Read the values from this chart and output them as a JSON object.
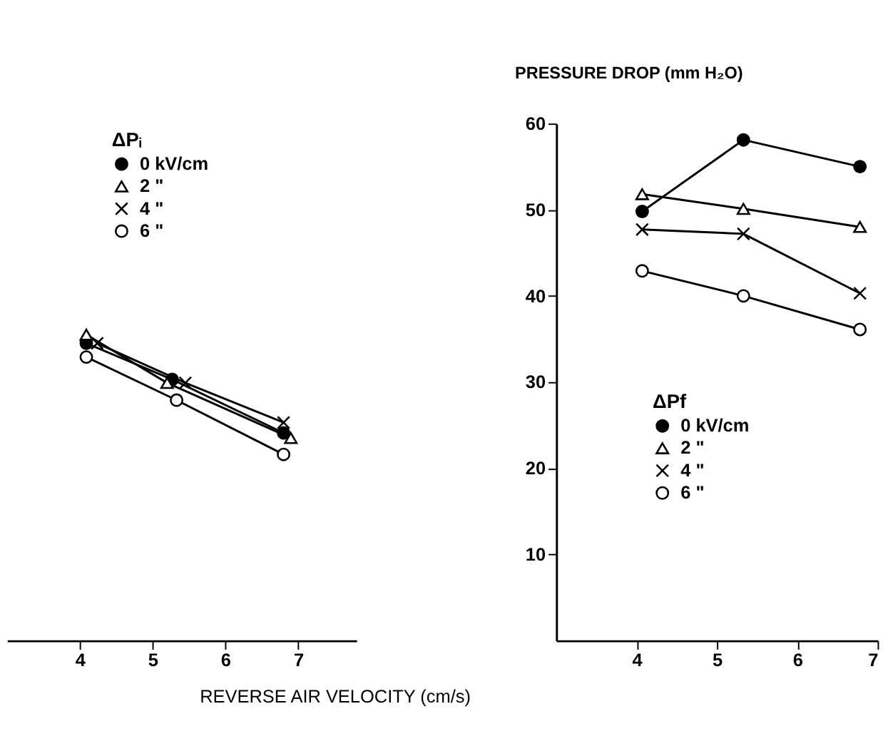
{
  "chart_data": [
    {
      "type": "line",
      "xlabel": "REVERSE AIR VELOCITY (cm/s)",
      "legend_title": "ΔPᵢ",
      "xlim": [
        3,
        7.8
      ],
      "xticks": [
        4,
        5,
        6,
        7
      ],
      "ylim": [
        0,
        60
      ],
      "tick_labels": "x",
      "legend": "top",
      "grid": false,
      "series": [
        {
          "name": "0 kV/cm",
          "color": "#000000",
          "marker": "circle",
          "x": [
            4.09,
            5.27,
            6.8
          ],
          "values": [
            34.5,
            30.3,
            24.1
          ]
        },
        {
          "name": "2 \"",
          "color": "#000000",
          "marker": "triangle",
          "x": [
            4.09,
            5.2,
            6.9
          ],
          "values": [
            35.5,
            29.9,
            23.5
          ]
        },
        {
          "name": "4 \"",
          "color": "#000000",
          "marker": "cross",
          "x": [
            4.24,
            5.45,
            6.8
          ],
          "values": [
            34.5,
            29.9,
            25.3
          ]
        },
        {
          "name": "6 \"",
          "color": "#000000",
          "marker": "circle",
          "x": [
            4.09,
            5.33,
            6.8
          ],
          "values": [
            32.9,
            27.9,
            21.6
          ]
        }
      ]
    },
    {
      "type": "line",
      "ylabel": "PRESSURE DROP (mm H₂O)",
      "legend_title": "ΔPf",
      "xlim": [
        3,
        7
      ],
      "xticks": [
        4,
        5,
        6,
        7
      ],
      "ylim": [
        0,
        60
      ],
      "yticks": [
        10,
        20,
        30,
        40,
        50,
        60
      ],
      "legend": "bottom",
      "grid": false,
      "series": [
        {
          "name": "0 kV/cm",
          "color": "#000000",
          "marker": "circle",
          "x": [
            4.07,
            5.33,
            6.78
          ],
          "values": [
            49.8,
            58.1,
            55
          ]
        },
        {
          "name": "2 \"",
          "color": "#000000",
          "marker": "triangle",
          "x": [
            4.07,
            5.33,
            6.78
          ],
          "values": [
            51.8,
            50.1,
            48
          ]
        },
        {
          "name": "4 \"",
          "color": "#000000",
          "marker": "cross",
          "x": [
            4.07,
            5.33,
            6.78
          ],
          "values": [
            47.7,
            47.2,
            40.3
          ]
        },
        {
          "name": "6 \"",
          "color": "#000000",
          "marker": "circle",
          "x": [
            4.07,
            5.33,
            6.78
          ],
          "values": [
            42.9,
            40,
            36.1
          ]
        }
      ]
    }
  ]
}
